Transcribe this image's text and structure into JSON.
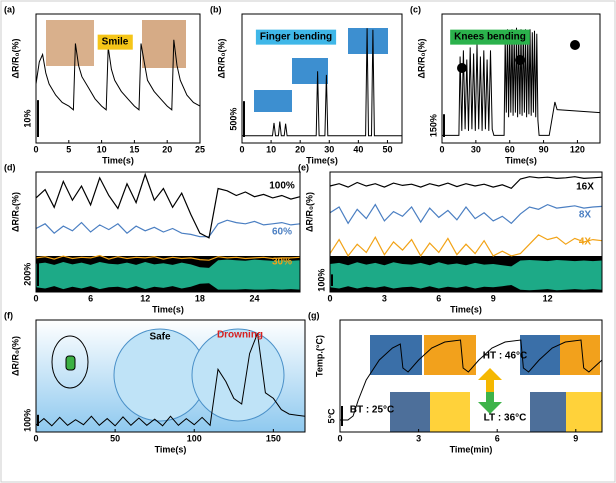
{
  "chart_data": [
    {
      "type": "line",
      "panel_label": "(a)",
      "ylabel": "ΔR/R₀(%)",
      "xlabel": "Time(s)",
      "annotations": [
        "Smile"
      ],
      "xlim": [
        0,
        25
      ],
      "xticks": [
        0,
        5,
        10,
        15,
        20,
        25
      ],
      "ylim": [
        0,
        35
      ],
      "scale_bar": {
        "value": 10,
        "label": "10%"
      },
      "color": "#000000",
      "x": [
        0,
        0.5,
        1,
        1.5,
        2,
        3,
        4,
        5,
        5.7,
        6,
        6.5,
        7,
        8,
        9,
        10,
        10.7,
        11,
        11.5,
        12,
        13,
        14,
        15,
        15.7,
        16,
        16.5,
        17,
        18,
        19,
        20,
        20.7,
        21,
        21.5,
        22,
        23,
        24,
        25
      ],
      "values": [
        16,
        22,
        24,
        19,
        16,
        13,
        11,
        10,
        9,
        27,
        21,
        18,
        15,
        12,
        10,
        9,
        26,
        20,
        17,
        14,
        12,
        10,
        9,
        27,
        22,
        17,
        14,
        12,
        10,
        9,
        28,
        21,
        17,
        13,
        11,
        10
      ]
    },
    {
      "type": "line",
      "panel_label": "(b)",
      "ylabel": "ΔR/R₀(%)",
      "xlabel": "Time(s)",
      "annotations": [
        "Finger bending"
      ],
      "xlim": [
        0,
        55
      ],
      "xticks": [
        0,
        10,
        20,
        30,
        40,
        50
      ],
      "ylim": [
        -100,
        1700
      ],
      "scale_bar": {
        "value": 500,
        "label": "500%"
      },
      "color": "#000000",
      "x": [
        0,
        10.5,
        11,
        11.5,
        12.5,
        13,
        13.5,
        14.5,
        15,
        15.5,
        25.5,
        26,
        26.5,
        28.5,
        29,
        29.5,
        42.5,
        43,
        43.5,
        44.5,
        45,
        45.5,
        55
      ],
      "values": [
        0,
        0,
        180,
        0,
        0,
        200,
        0,
        0,
        170,
        0,
        0,
        900,
        0,
        0,
        850,
        0,
        0,
        1500,
        0,
        0,
        1480,
        0,
        0
      ]
    },
    {
      "type": "line",
      "panel_label": "(c)",
      "ylabel": "ΔR/R₀(%)",
      "xlabel": "Time(s)",
      "annotations": [
        "Knees bending"
      ],
      "xlim": [
        0,
        140
      ],
      "xticks": [
        0,
        30,
        60,
        90,
        120
      ],
      "ylim": [
        -50,
        800
      ],
      "scale_bar": {
        "value": 150,
        "label": "150%"
      },
      "color": "#000000",
      "x": [
        0,
        15,
        16,
        17.5,
        19,
        20.5,
        22,
        23.5,
        25,
        26.5,
        28,
        29.5,
        31,
        32.5,
        34,
        35.5,
        37,
        38.5,
        40,
        41.5,
        43,
        44.5,
        46,
        47,
        55,
        56,
        57,
        58,
        59,
        60,
        61,
        62,
        63,
        64,
        65,
        66,
        67,
        68,
        69,
        70,
        71,
        72,
        73,
        74,
        75,
        76,
        77,
        78,
        79,
        80,
        81,
        82,
        83,
        84,
        85,
        86,
        88,
        95,
        100,
        102,
        140
      ],
      "values": [
        0,
        0,
        520,
        30,
        560,
        40,
        500,
        30,
        580,
        40,
        540,
        30,
        600,
        40,
        520,
        30,
        560,
        40,
        500,
        30,
        560,
        40,
        0,
        0,
        0,
        650,
        150,
        700,
        120,
        680,
        150,
        700,
        130,
        660,
        150,
        710,
        120,
        680,
        140,
        700,
        130,
        690,
        150,
        700,
        120,
        670,
        140,
        700,
        130,
        680,
        150,
        690,
        120,
        670,
        100,
        0,
        0,
        0,
        220,
        170,
        150
      ]
    },
    {
      "type": "line",
      "panel_label": "(d)",
      "ylabel": "ΔR/R₀(%)",
      "xlabel": "Time(s)",
      "xlim": [
        0,
        29
      ],
      "xticks": [
        0,
        6,
        12,
        18,
        24
      ],
      "ylim": [
        -20,
        1000
      ],
      "scale_bar": {
        "value": 200,
        "label": "200%"
      },
      "x": [
        0,
        1,
        2,
        3,
        4,
        5,
        6,
        7,
        8,
        9,
        10,
        11,
        12,
        13,
        14,
        15,
        16,
        17,
        18,
        19,
        20,
        21,
        22,
        23,
        24,
        25,
        26,
        27,
        28,
        29
      ],
      "series": [
        {
          "name": "100%",
          "color": "#000000",
          "values": [
            780,
            850,
            700,
            920,
            760,
            880,
            720,
            950,
            800,
            690,
            900,
            740,
            980,
            760,
            860,
            700,
            820,
            640,
            480,
            440,
            860,
            840,
            800,
            830,
            790,
            810,
            780,
            800,
            770,
            790
          ]
        },
        {
          "name": "60%",
          "color": "#4b7fc2",
          "values": [
            520,
            560,
            480,
            540,
            500,
            570,
            490,
            550,
            510,
            560,
            480,
            540,
            500,
            530,
            490,
            520,
            480,
            470,
            450,
            450,
            560,
            590,
            570,
            560,
            580,
            550,
            560,
            570,
            550,
            560
          ]
        },
        {
          "name": "30%",
          "color": "#f2a317",
          "values": [
            270,
            280,
            260,
            285,
            265,
            275,
            270,
            290,
            260,
            280,
            265,
            275,
            270,
            280,
            260,
            275,
            265,
            270,
            255,
            250,
            280,
            270,
            275,
            265,
            270,
            275,
            265,
            270,
            270,
            275
          ]
        }
      ],
      "waveform": {
        "color": "#1daa87",
        "upper": [
          220,
          230,
          210,
          235,
          215,
          230,
          210,
          235,
          220,
          215,
          230,
          210,
          235,
          215,
          225,
          210,
          230,
          215,
          190,
          185,
          250,
          255,
          250,
          245,
          255,
          250,
          245,
          250,
          245,
          250
        ],
        "lower": [
          20,
          10,
          30,
          5,
          25,
          10,
          30,
          5,
          20,
          25,
          10,
          30,
          5,
          25,
          15,
          30,
          10,
          25,
          50,
          55,
          0,
          0,
          0,
          5,
          0,
          0,
          5,
          0,
          5,
          0
        ]
      }
    },
    {
      "type": "line",
      "panel_label": "(e)",
      "ylabel": "ΔR/R₀(%)",
      "xlabel": "Time(s)",
      "xlim": [
        0,
        15
      ],
      "xticks": [
        0,
        3,
        6,
        9,
        12
      ],
      "ylim": [
        -30,
        1000
      ],
      "scale_bar": {
        "value": 100,
        "label": "100%"
      },
      "x": [
        0,
        0.5,
        1,
        1.5,
        2,
        2.5,
        3,
        3.5,
        4,
        4.5,
        5,
        5.5,
        6,
        6.5,
        7,
        7.5,
        8,
        8.5,
        9,
        9.5,
        10,
        10.5,
        11,
        11.5,
        12,
        12.5,
        13,
        13.5,
        14,
        14.5,
        15
      ],
      "series": [
        {
          "name": "16X",
          "color": "#000000",
          "values": [
            880,
            900,
            870,
            910,
            880,
            900,
            870,
            905,
            885,
            895,
            870,
            900,
            880,
            905,
            875,
            900,
            880,
            895,
            870,
            890,
            860,
            940,
            960,
            950,
            955,
            945,
            950,
            960,
            945,
            950,
            955
          ]
        },
        {
          "name": "8X",
          "color": "#4b7fc2",
          "values": [
            650,
            700,
            560,
            680,
            600,
            720,
            580,
            660,
            620,
            700,
            570,
            690,
            610,
            670,
            590,
            700,
            600,
            650,
            580,
            620,
            560,
            640,
            700,
            680,
            720,
            690,
            700,
            710,
            690,
            700,
            705
          ]
        },
        {
          "name": "4X",
          "color": "#f2a317",
          "values": [
            300,
            420,
            280,
            380,
            310,
            440,
            290,
            400,
            330,
            420,
            280,
            390,
            310,
            430,
            290,
            380,
            300,
            410,
            280,
            320,
            280,
            300,
            380,
            460,
            420,
            440,
            380,
            430,
            400,
            420,
            410
          ]
        }
      ],
      "waveform": {
        "color": "#1daa87",
        "upper": [
          210,
          220,
          200,
          225,
          205,
          220,
          200,
          225,
          210,
          205,
          220,
          200,
          225,
          205,
          215,
          200,
          220,
          205,
          210,
          200,
          190,
          240,
          245,
          240,
          235,
          245,
          240,
          235,
          240,
          235,
          240
        ],
        "lower": [
          10,
          0,
          20,
          0,
          15,
          5,
          20,
          0,
          10,
          15,
          0,
          20,
          0,
          15,
          5,
          20,
          0,
          15,
          10,
          20,
          30,
          -10,
          -15,
          -10,
          -5,
          -15,
          -10,
          -5,
          -10,
          -5,
          -10
        ]
      }
    },
    {
      "type": "line",
      "panel_label": "(f)",
      "ylabel": "ΔR/R₀(%)",
      "xlabel": "Time(s)",
      "annotations": [
        "Safe",
        "Drowning"
      ],
      "xlim": [
        0,
        170
      ],
      "xticks": [
        0,
        50,
        100,
        150
      ],
      "ylim": [
        0,
        1000
      ],
      "scale_bar": {
        "value": 100,
        "label": "100%"
      },
      "color": "#000000",
      "x": [
        0,
        5,
        10,
        15,
        20,
        25,
        30,
        35,
        40,
        45,
        50,
        55,
        60,
        65,
        70,
        75,
        80,
        85,
        90,
        95,
        100,
        105,
        110,
        115,
        120,
        125,
        130,
        135,
        140,
        145,
        150,
        155,
        160,
        165,
        170
      ],
      "values": [
        60,
        120,
        55,
        130,
        60,
        110,
        65,
        140,
        60,
        120,
        55,
        135,
        60,
        125,
        60,
        115,
        55,
        140,
        60,
        120,
        65,
        130,
        60,
        560,
        450,
        300,
        250,
        700,
        880,
        350,
        300,
        200,
        160,
        150,
        140
      ]
    },
    {
      "type": "line",
      "panel_label": "(g)",
      "ylabel": "Temp.(°C)",
      "xlabel": "Time(min)",
      "annotations": [
        "BT : 25°C",
        "HT : 46°C",
        "LT : 36°C"
      ],
      "xlim": [
        0,
        10
      ],
      "xticks": [
        0,
        3,
        6,
        9
      ],
      "ylim": [
        22,
        50
      ],
      "scale_bar": {
        "value": 5,
        "label": "5°C"
      },
      "color": "#000000",
      "x": [
        0,
        0.3,
        0.5,
        0.7,
        1,
        1.5,
        2,
        2.3,
        2.4,
        2.6,
        3,
        3.5,
        4,
        4.6,
        4.7,
        4.9,
        5.3,
        5.8,
        6.3,
        6.9,
        7,
        7.2,
        7.6,
        8.1,
        8.6,
        9.2,
        9.3,
        9.5,
        10
      ],
      "values": [
        25,
        25,
        26,
        30,
        35,
        40,
        43,
        44,
        38,
        37,
        40,
        43,
        44.5,
        45,
        38,
        37,
        40,
        43,
        44.5,
        45,
        38,
        37,
        40,
        43,
        44.5,
        45,
        38,
        37,
        40
      ]
    }
  ]
}
